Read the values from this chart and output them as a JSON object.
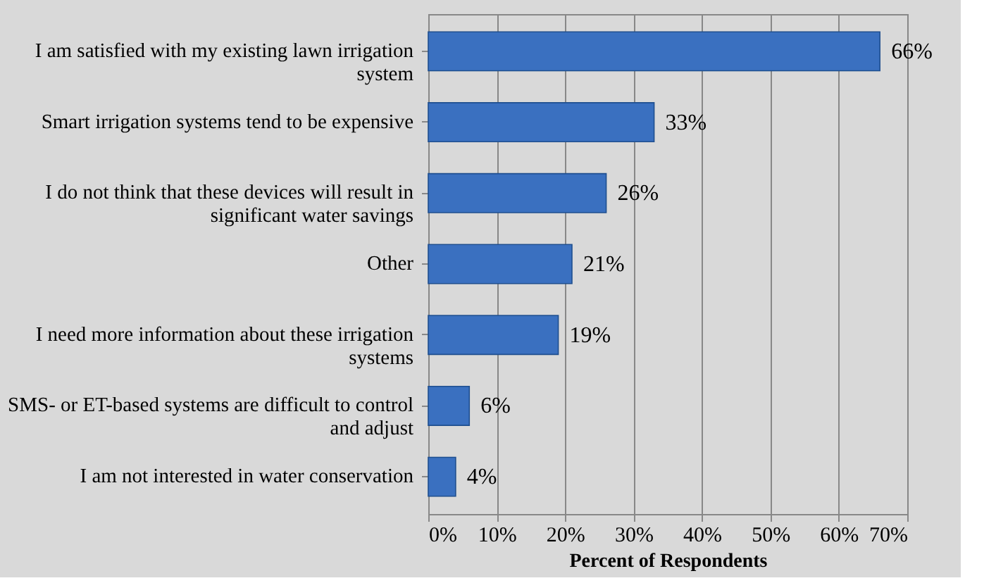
{
  "chart_data": {
    "type": "bar",
    "orientation": "horizontal",
    "xlabel": "Percent of Respondents",
    "categories": [
      "I am satisfied with my existing lawn irrigation system",
      "Smart irrigation systems tend to be expensive",
      "I do not think that these devices will result in significant water savings",
      "Other",
      "I need more information about these irrigation systems",
      "SMS- or ET-based systems are difficult to control and adjust",
      "I am not interested in water conservation"
    ],
    "values": [
      66,
      33,
      26,
      21,
      19,
      6,
      4
    ],
    "value_labels": [
      "66%",
      "33%",
      "26%",
      "21%",
      "19%",
      "6%",
      "4%"
    ],
    "color": "#3a70c0",
    "xlim": [
      0,
      70
    ],
    "xticks": [
      {
        "value": 0,
        "label": "0%"
      },
      {
        "value": 10,
        "label": "10%"
      },
      {
        "value": 20,
        "label": "20%"
      },
      {
        "value": 30,
        "label": "30%"
      },
      {
        "value": 40,
        "label": "40%"
      },
      {
        "value": 50,
        "label": "50%"
      },
      {
        "value": 60,
        "label": "60%"
      },
      {
        "value": 70,
        "label": "70%"
      }
    ],
    "grid": "x"
  }
}
